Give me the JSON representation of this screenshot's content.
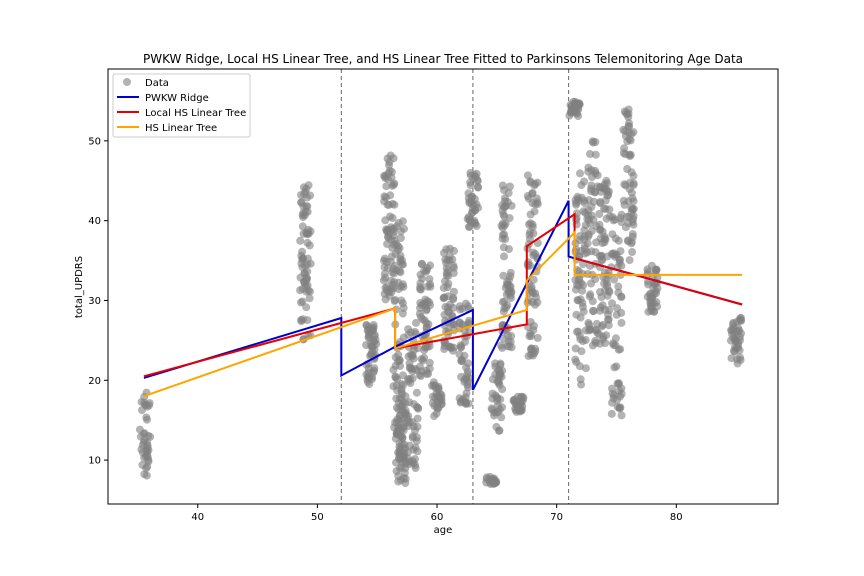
{
  "chart_data": {
    "type": "scatter",
    "title": "PWKW Ridge, Local HS Linear Tree, and HS Linear Tree Fitted to Parkinsons Telemonitoring Age Data",
    "xlabel": "age",
    "ylabel": "total_UPDRS",
    "xlim": [
      32.5,
      88.5
    ],
    "ylim": [
      4.5,
      59.0
    ],
    "xticks": [
      40,
      50,
      60,
      70,
      80
    ],
    "yticks": [
      10,
      20,
      30,
      40,
      50
    ],
    "legend": {
      "placement": "top-left"
    },
    "vlines": [
      52.0,
      63.0,
      71.0
    ],
    "colors": {
      "data": "#808080",
      "pwkw": "#0000cd",
      "local": "#e60000",
      "hs": "#ffa500",
      "vline": "#666666"
    },
    "data_clusters": [
      {
        "age": 35.6,
        "ymin": 8,
        "ymax": 18.5,
        "n": 40
      },
      {
        "age": 49.0,
        "ymin": 25,
        "ymax": 44.5,
        "n": 70
      },
      {
        "age": 54.5,
        "ymin": 19.5,
        "ymax": 27,
        "n": 50
      },
      {
        "age": 56.0,
        "ymin": 30,
        "ymax": 48.5,
        "n": 70
      },
      {
        "age": 56.8,
        "ymin": 10,
        "ymax": 40,
        "n": 80
      },
      {
        "age": 57.0,
        "ymin": 7,
        "ymax": 19,
        "n": 60
      },
      {
        "age": 58.0,
        "ymin": 9,
        "ymax": 28,
        "n": 60
      },
      {
        "age": 59.0,
        "ymin": 20,
        "ymax": 35,
        "n": 60
      },
      {
        "age": 60.0,
        "ymin": 15.5,
        "ymax": 20,
        "n": 30
      },
      {
        "age": 61.0,
        "ymin": 23,
        "ymax": 37,
        "n": 60
      },
      {
        "age": 62.3,
        "ymin": 17,
        "ymax": 30,
        "n": 50
      },
      {
        "age": 63.0,
        "ymin": 39,
        "ymax": 46,
        "n": 40
      },
      {
        "age": 64.5,
        "ymin": 7,
        "ymax": 8,
        "n": 20
      },
      {
        "age": 65.0,
        "ymin": 13.5,
        "ymax": 23,
        "n": 40
      },
      {
        "age": 65.8,
        "ymin": 24,
        "ymax": 44.5,
        "n": 70
      },
      {
        "age": 66.8,
        "ymin": 16,
        "ymax": 18,
        "n": 25
      },
      {
        "age": 68.0,
        "ymin": 23,
        "ymax": 46,
        "n": 70
      },
      {
        "age": 71.5,
        "ymin": 53,
        "ymax": 55,
        "n": 30
      },
      {
        "age": 72.0,
        "ymin": 19,
        "ymax": 46,
        "n": 70
      },
      {
        "age": 73.0,
        "ymin": 24,
        "ymax": 50,
        "n": 60
      },
      {
        "age": 74.0,
        "ymin": 24.5,
        "ymax": 45,
        "n": 70
      },
      {
        "age": 75.0,
        "ymin": 15.5,
        "ymax": 41,
        "n": 60
      },
      {
        "age": 76.0,
        "ymin": 35,
        "ymax": 54,
        "n": 60
      },
      {
        "age": 78.0,
        "ymin": 28,
        "ymax": 34.5,
        "n": 40
      },
      {
        "age": 85.0,
        "ymin": 22,
        "ymax": 28,
        "n": 40
      }
    ],
    "series": [
      {
        "name": "Data",
        "type": "scatter"
      },
      {
        "name": "PWKW Ridge",
        "type": "line",
        "x": [
          35.5,
          52.0,
          52.0,
          56.5,
          63.0,
          63.0,
          71.0,
          71.0,
          85.5
        ],
        "y": [
          20.3,
          27.8,
          20.6,
          24.2,
          28.8,
          18.8,
          42.5,
          35.5,
          29.5
        ]
      },
      {
        "name": "Local HS Linear Tree",
        "type": "line",
        "x": [
          35.5,
          56.5,
          56.5,
          67.5,
          67.5,
          71.5,
          71.5,
          85.5
        ],
        "y": [
          20.5,
          29.0,
          24.0,
          27.0,
          36.8,
          40.8,
          35.3,
          29.5
        ]
      },
      {
        "name": "HS Linear Tree",
        "type": "line",
        "x": [
          35.5,
          56.5,
          56.5,
          67.5,
          67.5,
          71.5,
          71.5,
          85.5
        ],
        "y": [
          18.0,
          29.0,
          24.0,
          28.8,
          32.5,
          38.5,
          33.2,
          33.2
        ]
      }
    ]
  }
}
